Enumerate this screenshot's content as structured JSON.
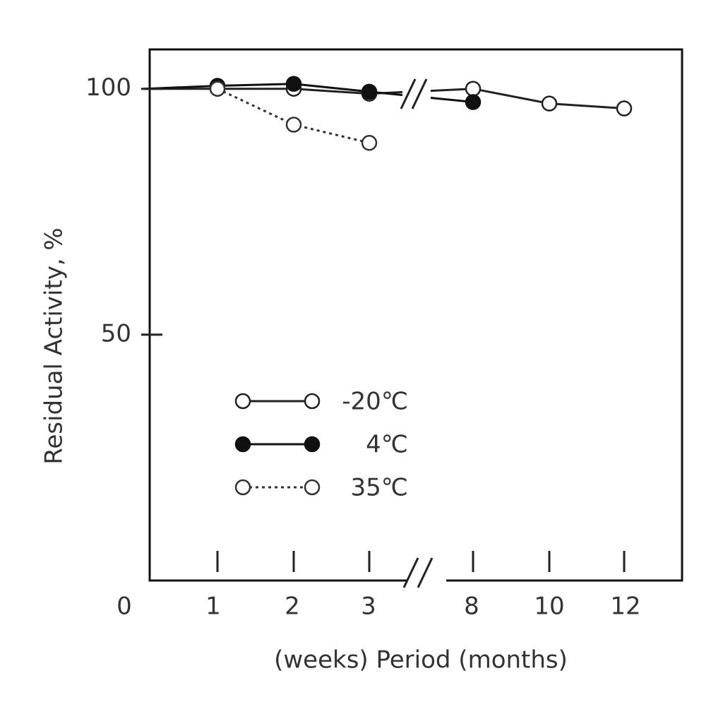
{
  "chart_data": {
    "type": "line",
    "ylabel": "Residual Activity, %",
    "xlabel": "(weeks) Period (months)",
    "categories": [
      "0",
      "1",
      "2",
      "3",
      "8",
      "10",
      "12"
    ],
    "ylim": [
      0,
      108
    ],
    "yticks": [
      50,
      100
    ],
    "series": [
      {
        "name": "-20℃",
        "color": "#222222",
        "marker": "open",
        "line_style": "solid",
        "values": [
          100,
          100,
          100,
          99,
          100,
          97,
          96
        ]
      },
      {
        "name": "4℃",
        "color": "#111111",
        "marker": "filled",
        "line_style": "solid",
        "values": [
          100,
          100.6,
          101,
          99.4,
          97.3,
          null,
          null
        ]
      },
      {
        "name": "35℃",
        "color": "#333333",
        "marker": "open",
        "line_style": "dotted",
        "values": [
          null,
          100,
          92.7,
          89,
          null,
          null,
          null
        ]
      }
    ]
  }
}
